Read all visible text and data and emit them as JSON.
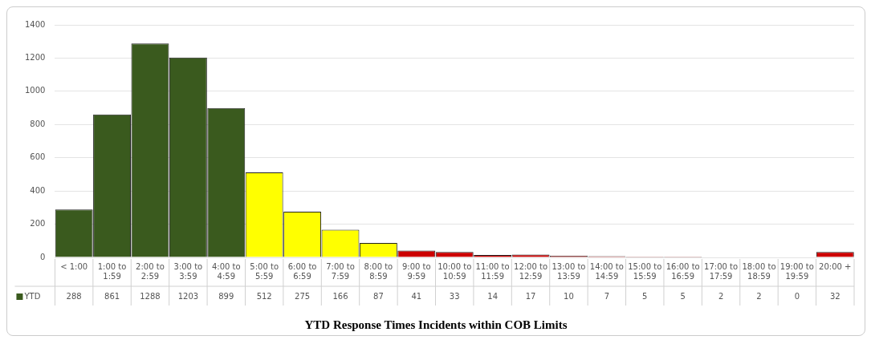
{
  "chart_data": {
    "type": "bar",
    "title": "YTD Response Times Incidents within COB Limits",
    "categories": [
      "< 1:00",
      "1:00 to 1:59",
      "2:00 to 2:59",
      "3:00 to 3:59",
      "4:00 to 4:59",
      "5:00 to 5:59",
      "6:00 to 6:59",
      "7:00 to 7:59",
      "8:00 to 8:59",
      "9:00 to 9:59",
      "10:00 to 10:59",
      "11:00 to 11:59",
      "12:00 to 12:59",
      "13:00 to 13:59",
      "14:00 to 14:59",
      "15:00 to 15:59",
      "16:00 to 16:59",
      "17:00 to 17:59",
      "18:00 to 18:59",
      "19:00 to 19:59",
      "20:00 +"
    ],
    "series": [
      {
        "name": "YTD",
        "values": [
          288,
          861,
          1288,
          1203,
          899,
          512,
          275,
          166,
          87,
          41,
          33,
          14,
          17,
          10,
          7,
          5,
          5,
          2,
          2,
          0,
          32
        ],
        "colors": [
          "#3a5a1e",
          "#3a5a1e",
          "#3a5a1e",
          "#3a5a1e",
          "#3a5a1e",
          "#ffff00",
          "#ffff00",
          "#ffff00",
          "#ffff00",
          "#cc0000",
          "#cc0000",
          "#cc0000",
          "#cc0000",
          "#cc0000",
          "#cc0000",
          "#cc0000",
          "#cc0000",
          "#cc0000",
          "#cc0000",
          "#cc0000",
          "#cc0000"
        ]
      }
    ],
    "ylim": [
      0,
      1400
    ],
    "yticks": [
      0,
      200,
      400,
      600,
      800,
      1000,
      1200,
      1400
    ],
    "grid": "y",
    "data_labels": true
  }
}
